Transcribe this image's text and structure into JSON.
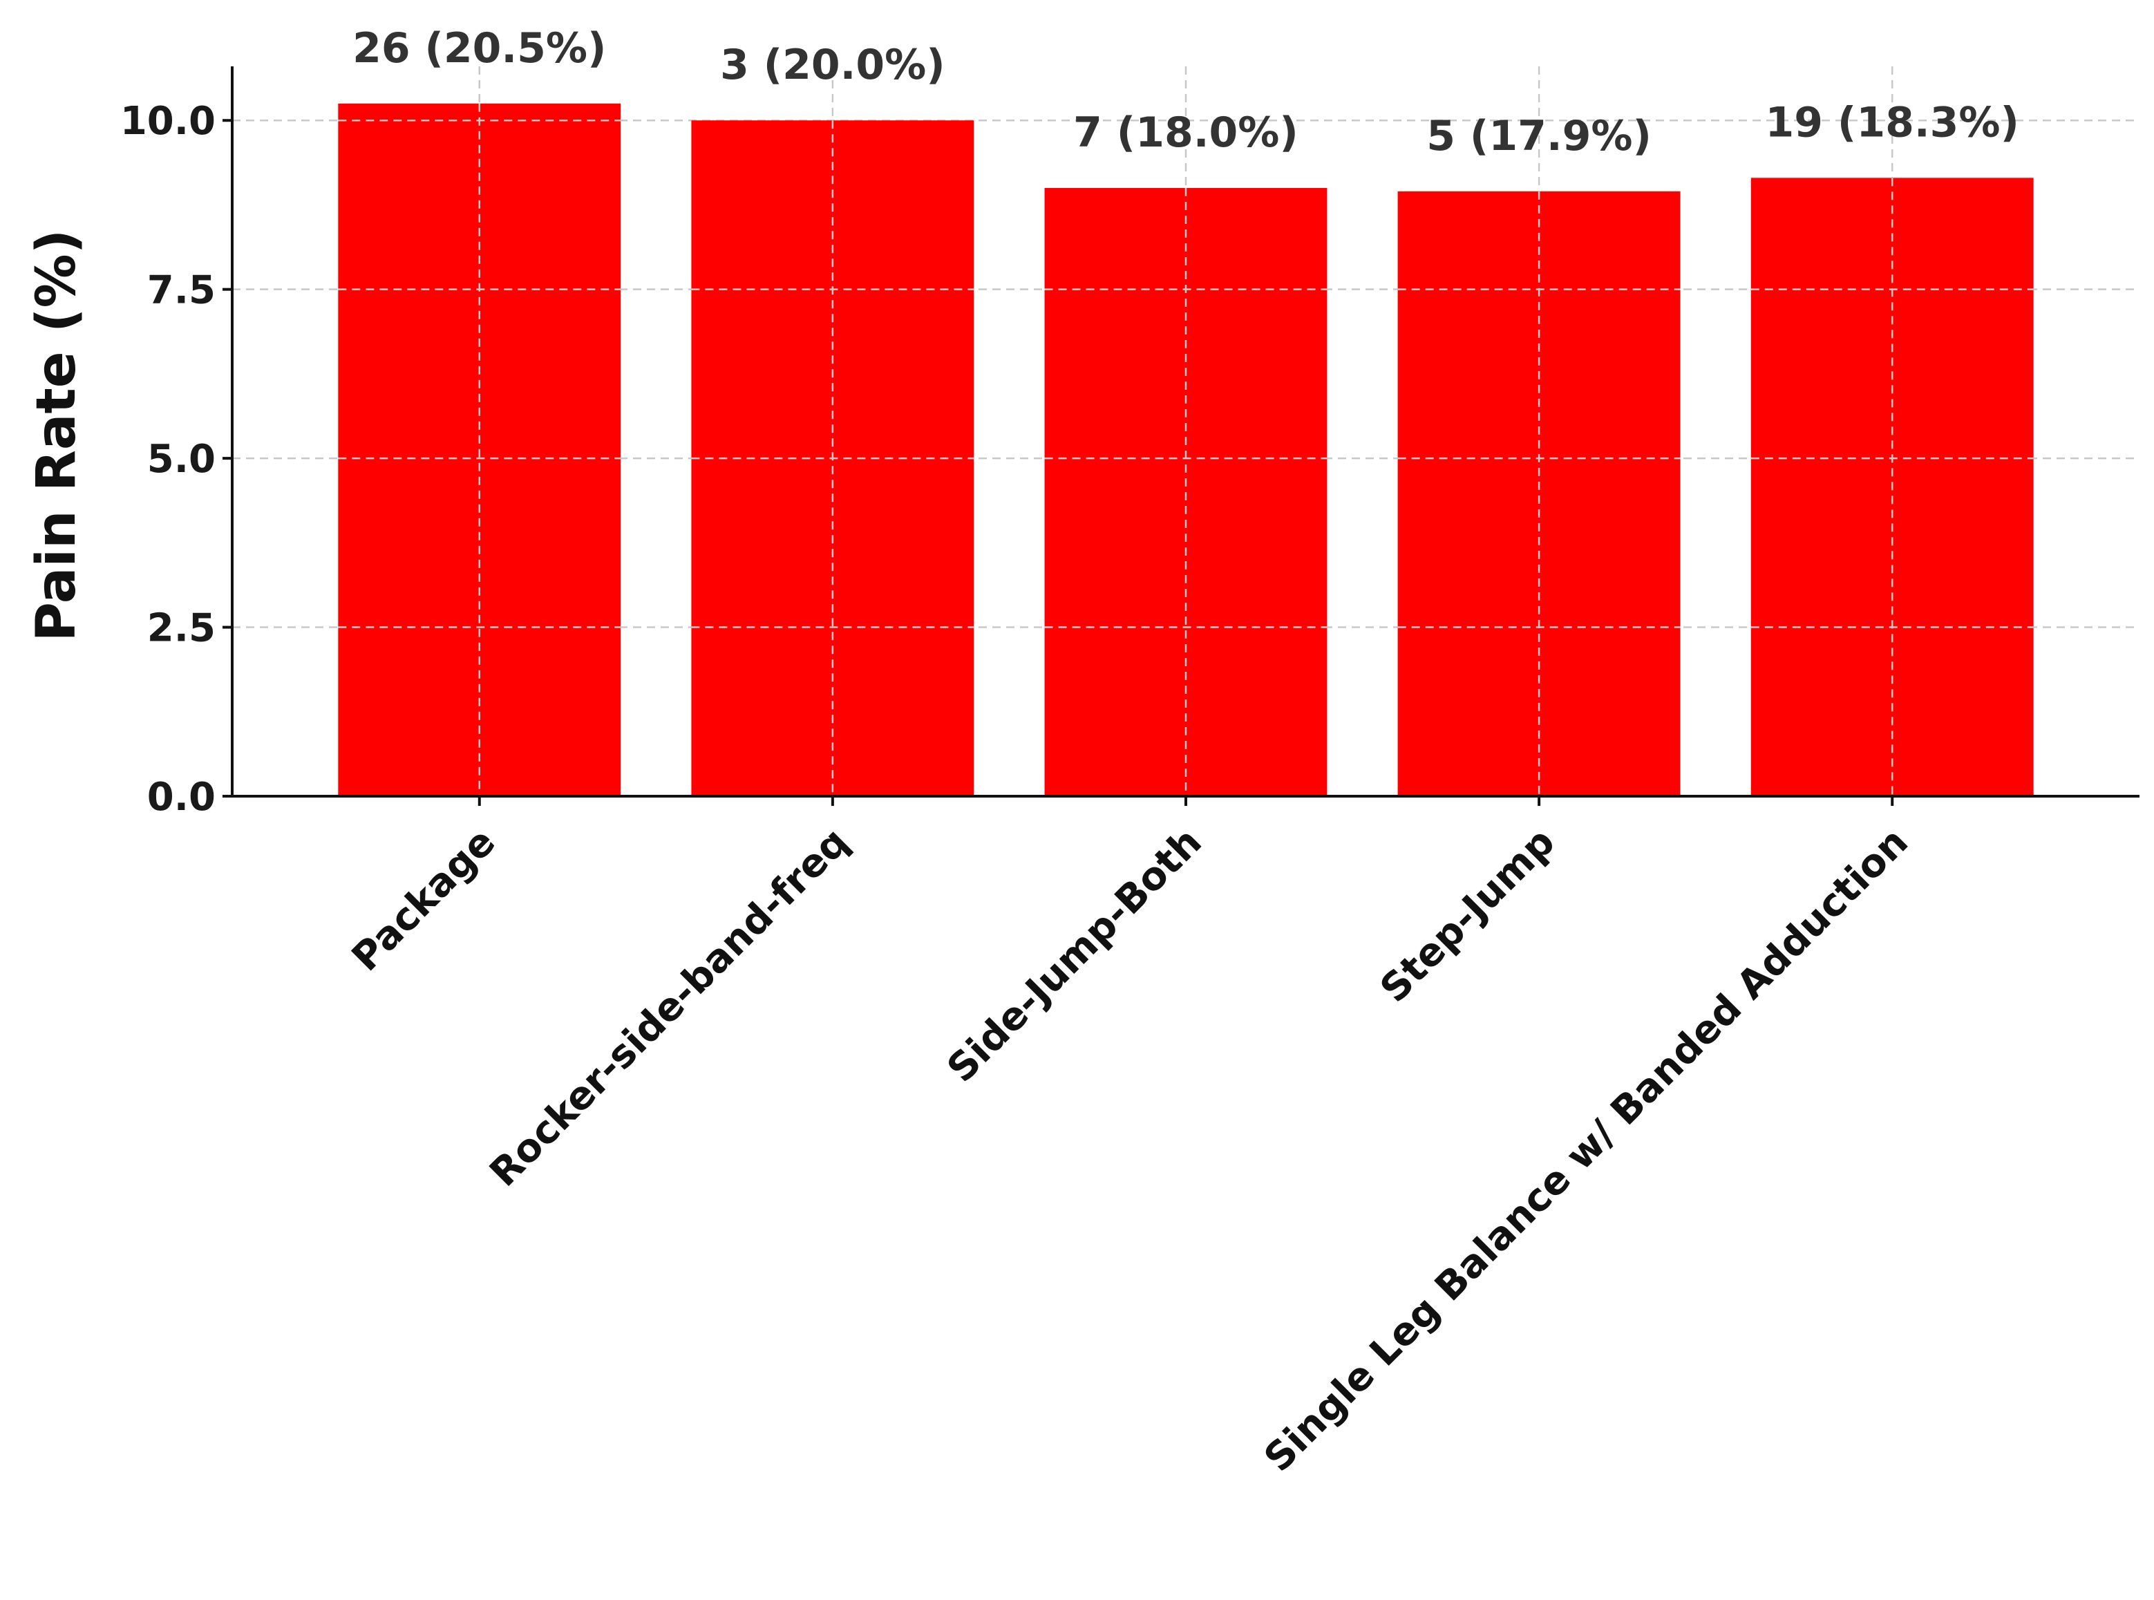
{
  "chart_data": {
    "type": "bar",
    "categories": [
      "Package",
      "Rocker-side-band-freq",
      "Side-Jump-Both",
      "Step-Jump",
      "Single Leg Balance w/ Banded Adduction"
    ],
    "values": [
      10.25,
      10.0,
      9.0,
      8.95,
      9.15
    ],
    "data_labels": [
      "26 (20.5%)",
      "3 (20.0%)",
      "7 (18.0%)",
      "5 (17.9%)",
      "19 (18.3%)"
    ],
    "ylabel": "Pain Rate (%)",
    "xlabel": "",
    "title": "",
    "ylim": [
      0,
      10.8
    ],
    "yticks": [
      0.0,
      2.5,
      5.0,
      7.5,
      10.0
    ],
    "ytick_labels": [
      "0.0",
      "2.5",
      "5.0",
      "7.5",
      "10.0"
    ],
    "grid": true,
    "bar_color": "#ff0000"
  }
}
